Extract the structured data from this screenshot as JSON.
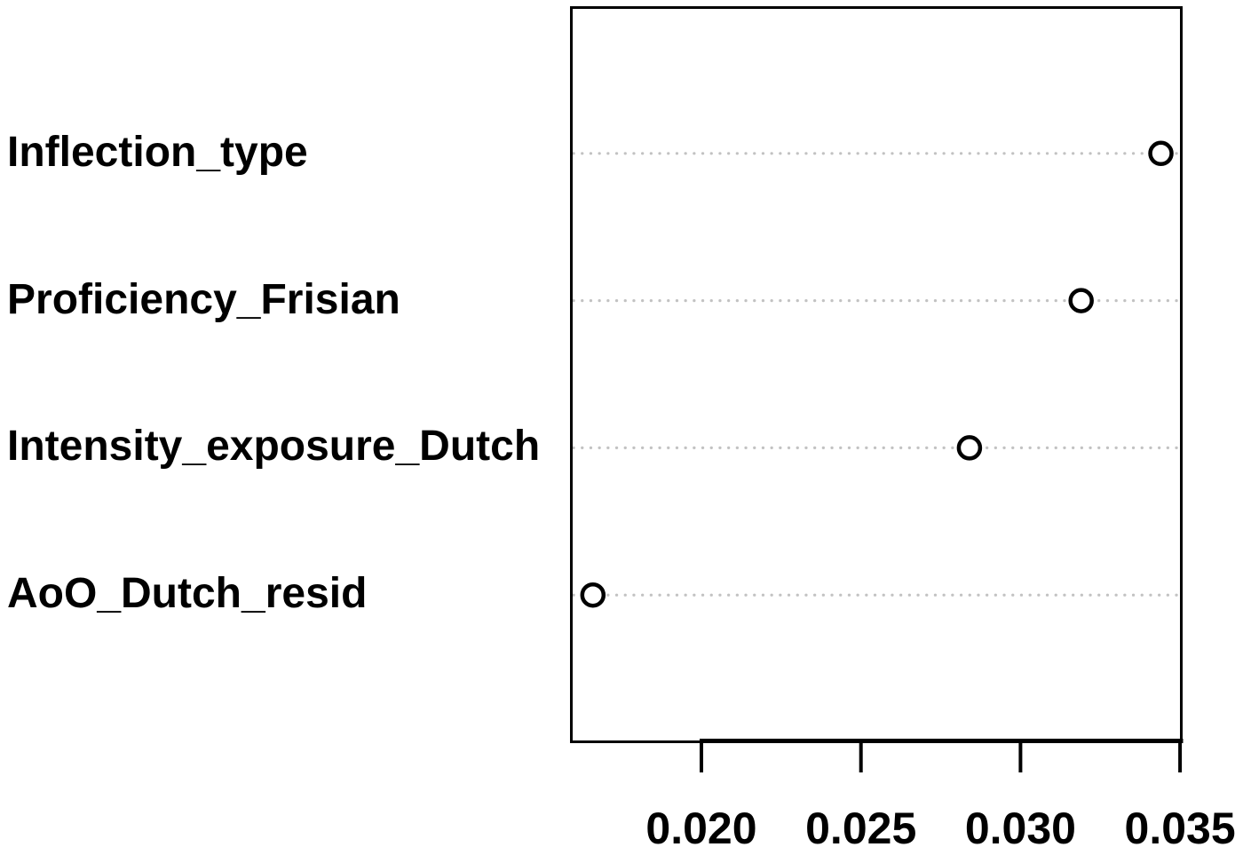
{
  "chart_data": {
    "type": "scatter",
    "variant": "dotchart",
    "title": "",
    "xlabel": "",
    "ylabel": "",
    "categories": [
      "Inflection_type",
      "Proficiency_Frisian",
      "Intensity_exposure_Dutch",
      "AoO_Dutch_resid"
    ],
    "values": [
      0.0344,
      0.0319,
      0.0284,
      0.0166
    ],
    "x_ticks": [
      0.02,
      0.025,
      0.03,
      0.035
    ],
    "x_tick_labels": [
      "0.020",
      "0.025",
      "0.030",
      "0.035"
    ],
    "xlim": [
      0.015882,
      0.035053
    ],
    "grid": "dotted-horizontal",
    "legend": "none",
    "point_style": "open-circle",
    "colors": {
      "point_stroke": "#000000",
      "grid_dotted": "#c2c2c2",
      "box_border": "#000000",
      "axis": "#000000",
      "background": "#ffffff"
    }
  }
}
